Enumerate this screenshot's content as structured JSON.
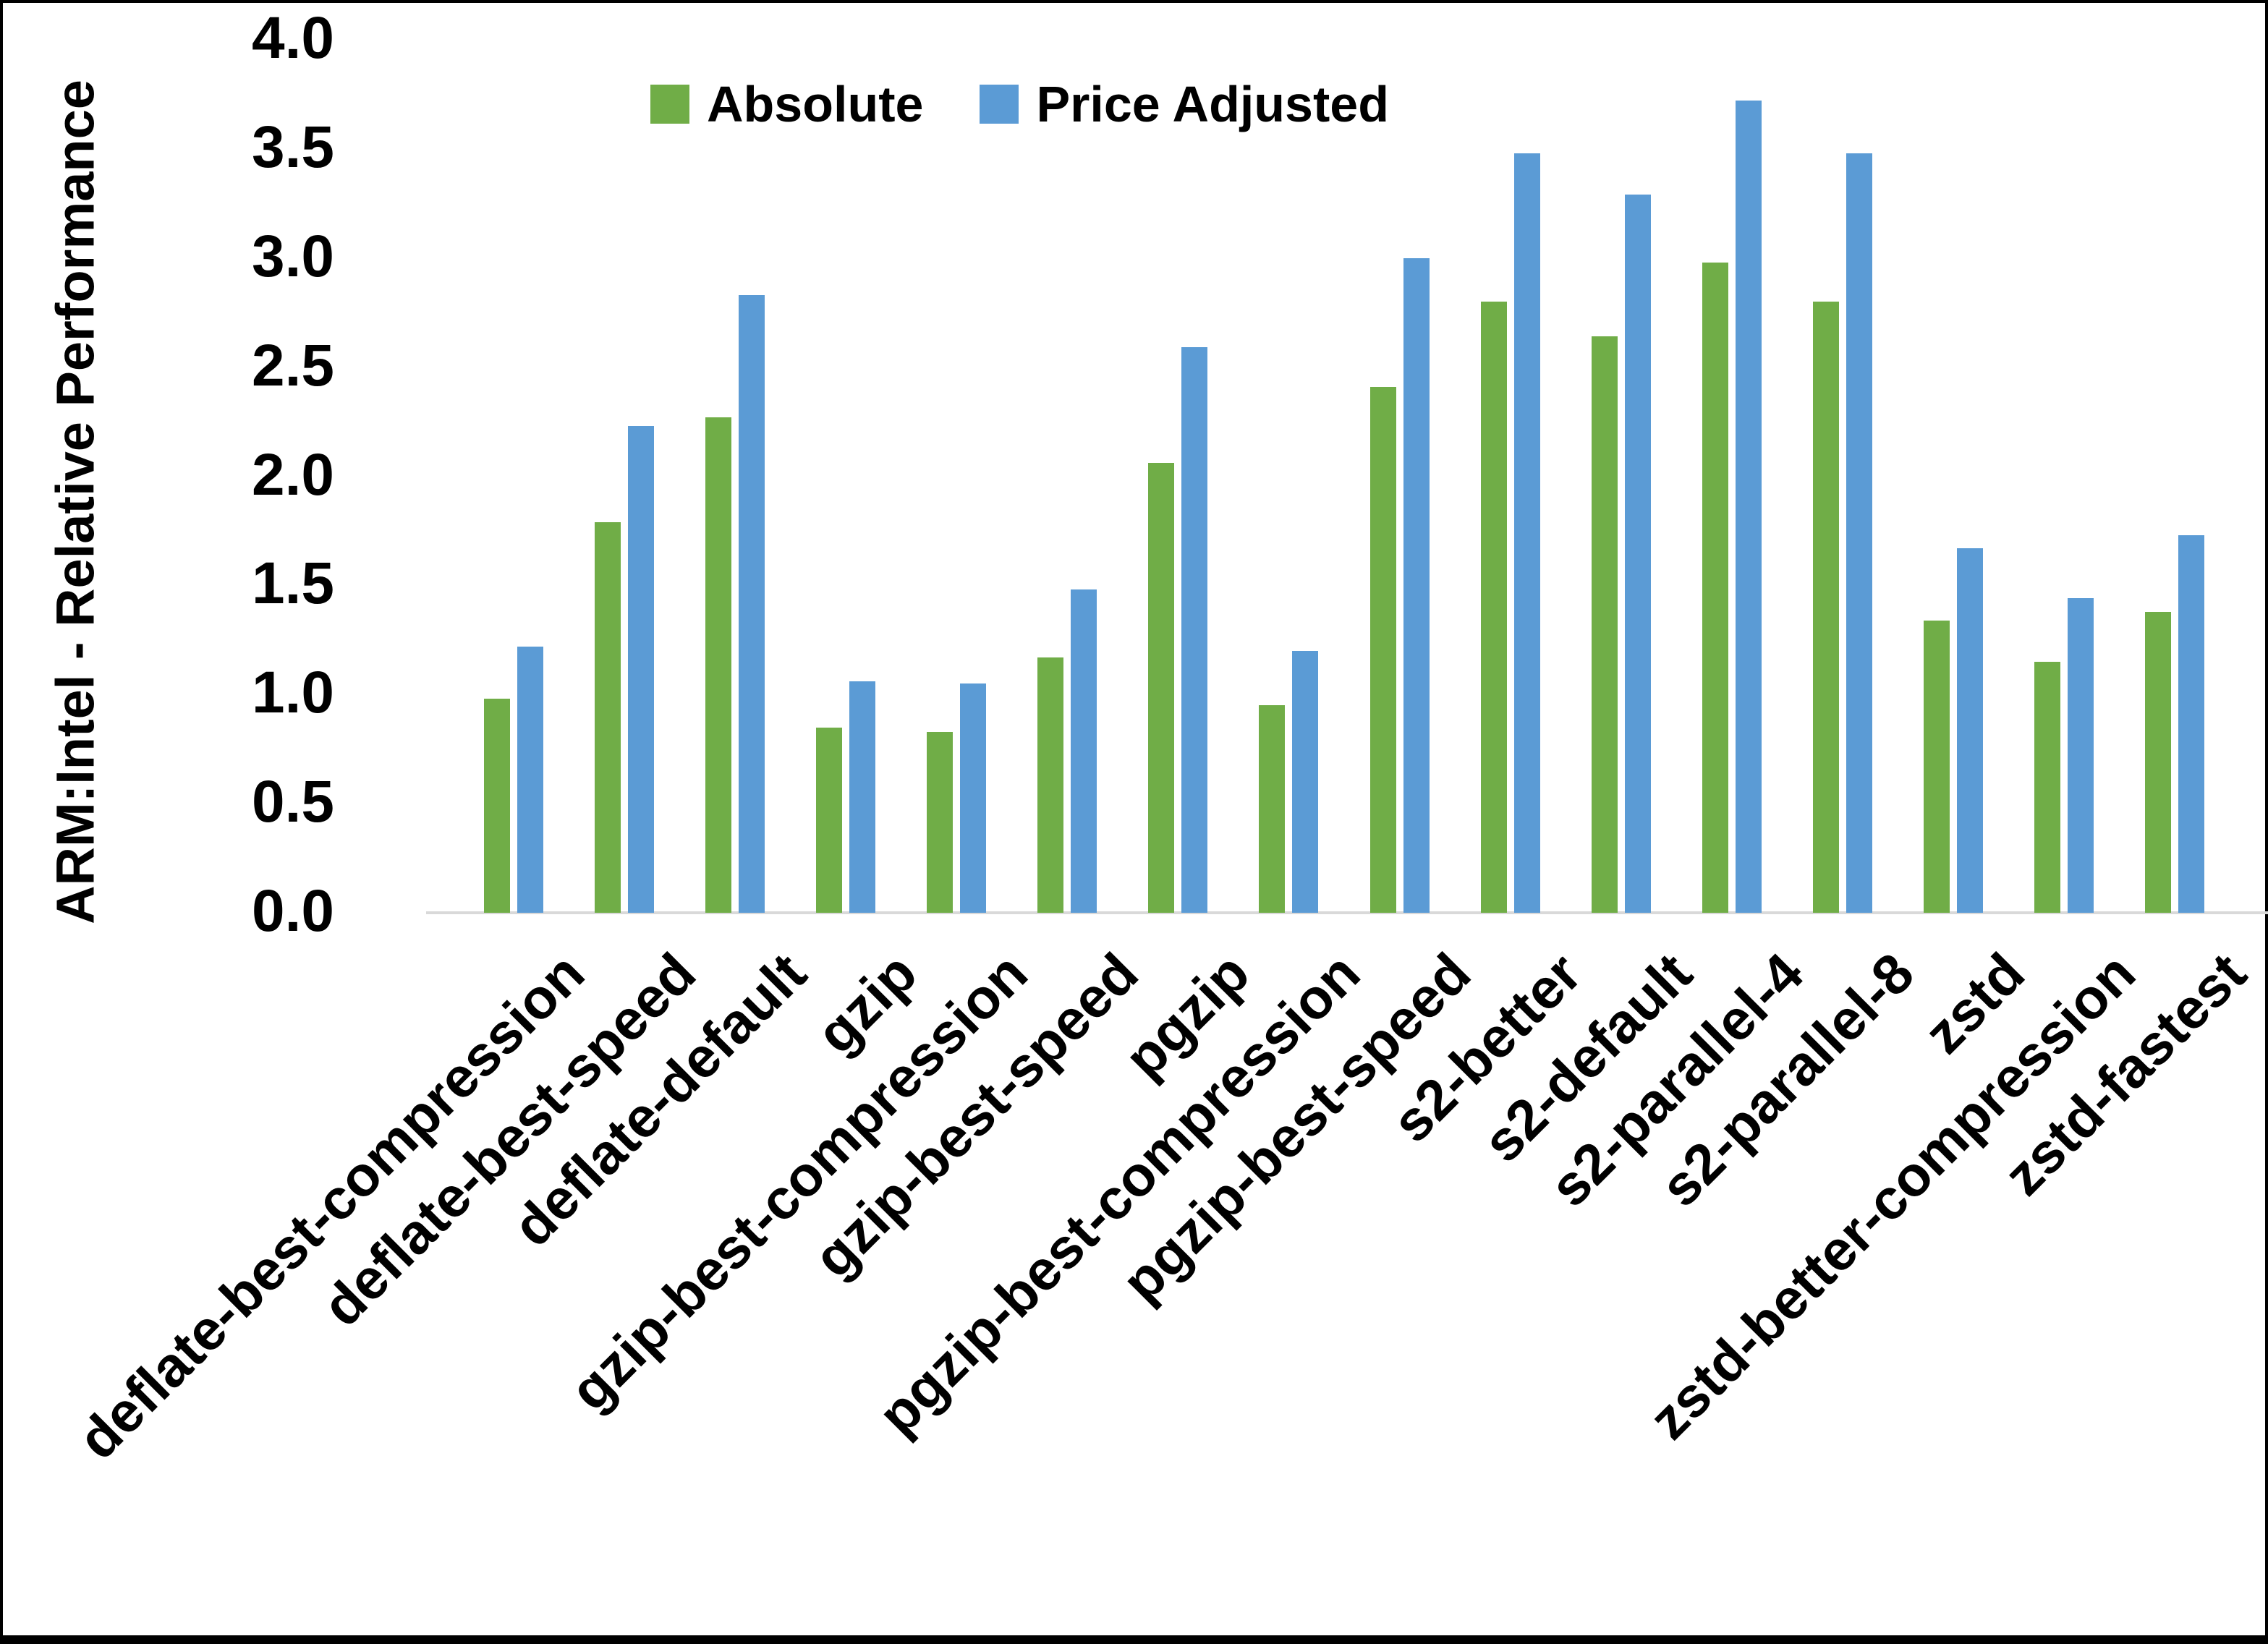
{
  "chart_data": {
    "type": "bar",
    "title": "",
    "xlabel": "",
    "ylabel": "ARM:Intel - Relative Performance",
    "ylim": [
      0.0,
      4.0
    ],
    "ytick_step": 0.5,
    "yticks": [
      "4.0",
      "3.5",
      "3.0",
      "2.5",
      "2.0",
      "1.5",
      "1.0",
      "0.5",
      "0.0"
    ],
    "grid": false,
    "legend_position": "top-center",
    "categories": [
      "deflate-best-compression",
      "deflate-best-speed",
      "deflate-default",
      "gzip",
      "gzip-best-compression",
      "gzip-best-speed",
      "pgzip",
      "pgzip-best-compression",
      "pgzip-best-speed",
      "s2-better",
      "s2-default",
      "s2-parallel-4",
      "s2-parallel-8",
      "zstd",
      "zstd-better-compression",
      "zstd-fastest"
    ],
    "series": [
      {
        "name": "Absolute",
        "color": "#70AD47",
        "values": [
          0.98,
          1.79,
          2.27,
          0.85,
          0.83,
          1.17,
          2.06,
          0.95,
          2.41,
          2.8,
          2.64,
          2.98,
          2.8,
          1.34,
          1.15,
          1.38
        ]
      },
      {
        "name": "Price Adjusted",
        "color": "#5B9BD5",
        "values": [
          1.22,
          2.23,
          2.83,
          1.06,
          1.05,
          1.48,
          2.59,
          1.2,
          3.0,
          3.48,
          3.29,
          3.72,
          3.48,
          1.67,
          1.44,
          1.73
        ]
      }
    ]
  },
  "colors": {
    "axis_line": "#D9D9D9",
    "text": "#000000",
    "background": "#FFFFFF",
    "frame": "#000000"
  }
}
